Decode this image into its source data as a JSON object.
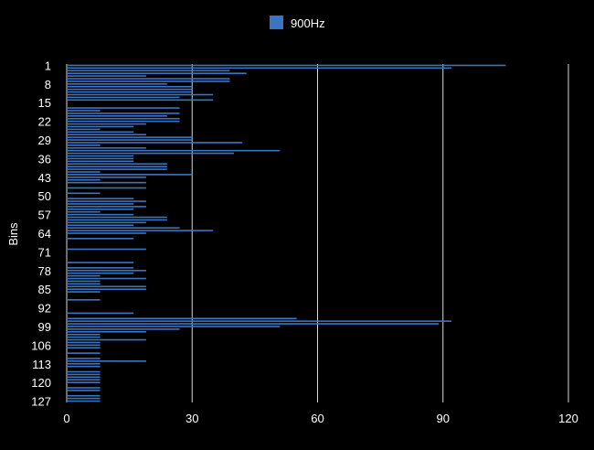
{
  "chart_data": {
    "type": "bar",
    "orientation": "horizontal",
    "title": "",
    "ylabel": "Bins",
    "xlabel": "",
    "xlim": [
      0,
      120
    ],
    "x_ticks": [
      0,
      30,
      60,
      90,
      120
    ],
    "y_tick_labels": [
      "1",
      "8",
      "15",
      "22",
      "29",
      "36",
      "43",
      "50",
      "57",
      "64",
      "71",
      "78",
      "85",
      "92",
      "99",
      "106",
      "113",
      "120",
      "127"
    ],
    "grid": "vertical",
    "legend": "top-center",
    "categories": [
      1,
      2,
      3,
      4,
      5,
      6,
      7,
      8,
      9,
      10,
      11,
      12,
      13,
      14,
      15,
      16,
      17,
      18,
      19,
      20,
      21,
      22,
      23,
      24,
      25,
      26,
      27,
      28,
      29,
      30,
      31,
      32,
      33,
      34,
      35,
      36,
      37,
      38,
      39,
      40,
      41,
      42,
      43,
      44,
      45,
      46,
      47,
      48,
      49,
      50,
      51,
      52,
      53,
      54,
      55,
      56,
      57,
      58,
      59,
      60,
      61,
      62,
      63,
      64,
      65,
      66,
      67,
      68,
      69,
      70,
      71,
      72,
      73,
      74,
      75,
      76,
      77,
      78,
      79,
      80,
      81,
      82,
      83,
      84,
      85,
      86,
      87,
      88,
      89,
      90,
      91,
      92,
      93,
      94,
      95,
      96,
      97,
      98,
      99,
      100,
      101,
      102,
      103,
      104,
      105,
      106,
      107,
      108,
      109,
      110,
      111,
      112,
      113,
      114,
      115,
      116,
      117,
      118,
      119,
      120,
      121,
      122,
      123,
      124,
      125,
      126,
      127
    ],
    "series": [
      {
        "name": "900Hz",
        "color": "#3a75c4",
        "values": [
          105,
          92,
          39,
          43,
          19,
          39,
          39,
          24,
          30,
          30,
          30,
          35,
          27,
          35,
          0,
          0,
          27,
          8,
          27,
          24,
          27,
          27,
          19,
          16,
          8,
          16,
          19,
          30,
          30,
          42,
          8,
          19,
          51,
          40,
          16,
          16,
          16,
          24,
          24,
          24,
          8,
          30,
          19,
          8,
          19,
          0,
          19,
          0,
          8,
          0,
          16,
          19,
          16,
          19,
          16,
          8,
          16,
          24,
          24,
          19,
          16,
          27,
          35,
          19,
          0,
          16,
          0,
          0,
          0,
          19,
          0,
          0,
          0,
          0,
          16,
          0,
          16,
          19,
          16,
          8,
          19,
          8,
          8,
          19,
          19,
          8,
          0,
          0,
          8,
          0,
          0,
          0,
          0,
          16,
          0,
          55,
          92,
          89,
          51,
          27,
          19,
          8,
          8,
          19,
          8,
          8,
          8,
          0,
          8,
          0,
          8,
          19,
          8,
          8,
          0,
          8,
          8,
          8,
          8,
          8,
          0,
          8,
          8,
          0,
          8,
          8,
          8
        ]
      }
    ]
  }
}
